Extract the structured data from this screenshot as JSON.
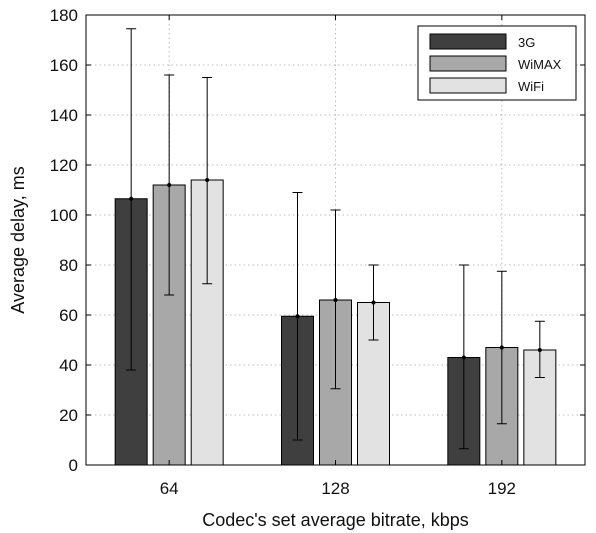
{
  "chart_data": {
    "type": "bar",
    "title": "",
    "xlabel": "Codec's set average bitrate, kbps",
    "ylabel": "Average delay, ms",
    "categories": [
      "64",
      "128",
      "192"
    ],
    "ylim": [
      0,
      180
    ],
    "yticks": [
      0,
      20,
      40,
      60,
      80,
      100,
      120,
      140,
      160,
      180
    ],
    "grid": true,
    "legend_position": "top-right",
    "series": [
      {
        "name": "3G",
        "color": "#3f3f3f",
        "values": [
          106.5,
          59.5,
          43
        ],
        "err_low": [
          38,
          10,
          6.5
        ],
        "err_high": [
          174.5,
          109,
          80
        ]
      },
      {
        "name": "WiMAX",
        "color": "#a8a8a8",
        "values": [
          112,
          66,
          47
        ],
        "err_low": [
          68,
          30.5,
          16.5
        ],
        "err_high": [
          156,
          102,
          77.5
        ]
      },
      {
        "name": "WiFi",
        "color": "#e2e2e2",
        "values": [
          114,
          65,
          46
        ],
        "err_low": [
          72.5,
          50,
          35
        ],
        "err_high": [
          155,
          80,
          57.5
        ]
      }
    ]
  }
}
